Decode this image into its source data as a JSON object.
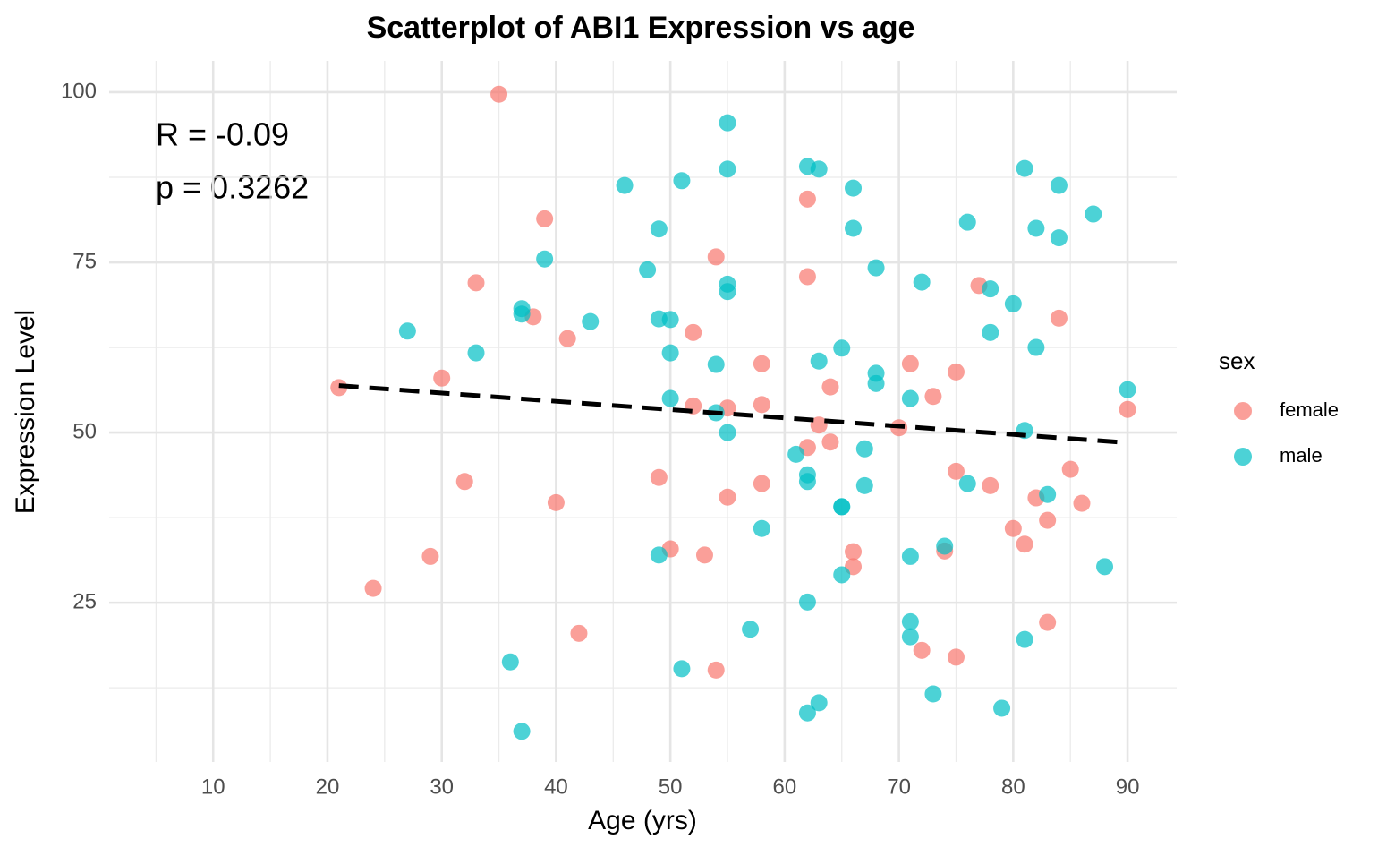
{
  "chart_data": {
    "type": "scatter",
    "title": "Scatterplot of ABI1 Expression vs age",
    "x_label": "Age (yrs)",
    "y_label": "Expression Level",
    "annotations": [
      "R = -0.09",
      "p = 0.3262"
    ],
    "legend_title": "sex",
    "legend_position": "right",
    "grid": true,
    "xlim": [
      0.9,
      94.3
    ],
    "ylim": [
      1.6,
      104.6
    ],
    "xticks": [
      10,
      20,
      30,
      40,
      50,
      60,
      70,
      80,
      90
    ],
    "yticks": [
      25,
      50,
      75,
      100
    ],
    "x_minor_ticks": [
      5,
      15,
      25,
      35,
      45,
      55,
      65,
      75,
      85
    ],
    "y_minor_ticks": [
      12.5,
      37.5,
      62.5,
      87.5
    ],
    "series": [
      {
        "name": "female",
        "color": "#F8766D",
        "x": [
          35,
          39,
          33,
          38,
          41,
          30,
          21,
          32,
          40,
          29,
          24,
          42,
          54,
          52,
          58,
          58,
          55,
          52,
          49,
          58,
          55,
          50,
          53,
          54,
          62,
          62,
          64,
          63,
          64,
          62,
          66,
          66,
          70,
          71,
          73,
          75,
          77,
          75,
          78,
          74,
          72,
          75,
          84,
          85,
          82,
          80,
          83,
          81,
          86,
          83,
          90
        ],
        "values": [
          99.7,
          81.4,
          72.0,
          67.0,
          63.8,
          58.0,
          56.6,
          42.8,
          39.7,
          31.8,
          27.1,
          20.5,
          75.8,
          64.7,
          60.1,
          54.1,
          53.6,
          53.9,
          43.4,
          42.5,
          40.5,
          32.9,
          32.0,
          15.1,
          84.3,
          72.9,
          56.7,
          51.1,
          48.6,
          47.8,
          32.5,
          30.3,
          50.7,
          60.1,
          55.3,
          58.9,
          71.6,
          44.3,
          42.2,
          32.6,
          18.0,
          17.0,
          66.8,
          44.6,
          40.4,
          35.9,
          37.1,
          33.6,
          39.6,
          22.1,
          53.4
        ]
      },
      {
        "name": "male",
        "color": "#00BFC4",
        "x": [
          27,
          33,
          37,
          37,
          39,
          43,
          36,
          37,
          46,
          48,
          49,
          49,
          50,
          50,
          50,
          49,
          51,
          51,
          55,
          55,
          55,
          55,
          54,
          54,
          55,
          57,
          58,
          62,
          63,
          66,
          66,
          68,
          65,
          63,
          68,
          68,
          61,
          67,
          62,
          62,
          67,
          65,
          65,
          65,
          62,
          63,
          62,
          72,
          71,
          71,
          71,
          71,
          74,
          73,
          76,
          78,
          78,
          76,
          81,
          84,
          82,
          84,
          87,
          80,
          82,
          81,
          83,
          88,
          90,
          81,
          79
        ],
        "values": [
          64.9,
          61.7,
          68.2,
          67.4,
          75.5,
          66.3,
          16.3,
          6.1,
          86.3,
          73.9,
          79.9,
          66.7,
          66.6,
          61.7,
          55.0,
          32.0,
          87.0,
          15.3,
          95.5,
          88.7,
          71.8,
          70.7,
          60.0,
          52.9,
          50.0,
          21.1,
          35.9,
          89.1,
          88.7,
          85.9,
          80.0,
          74.2,
          62.4,
          60.5,
          58.7,
          57.2,
          46.8,
          47.6,
          43.8,
          42.8,
          42.2,
          39.1,
          39.1,
          29.1,
          25.1,
          10.3,
          8.8,
          72.1,
          55.0,
          31.8,
          22.2,
          20.0,
          33.3,
          11.6,
          80.9,
          71.1,
          64.7,
          42.5,
          88.8,
          86.3,
          80.0,
          78.6,
          82.1,
          68.9,
          62.5,
          50.3,
          40.9,
          30.3,
          56.3,
          19.6,
          9.5
        ]
      }
    ],
    "trend_line": {
      "color": "#000000",
      "x": [
        21,
        90
      ],
      "y": [
        56.9,
        48.5
      ]
    }
  }
}
